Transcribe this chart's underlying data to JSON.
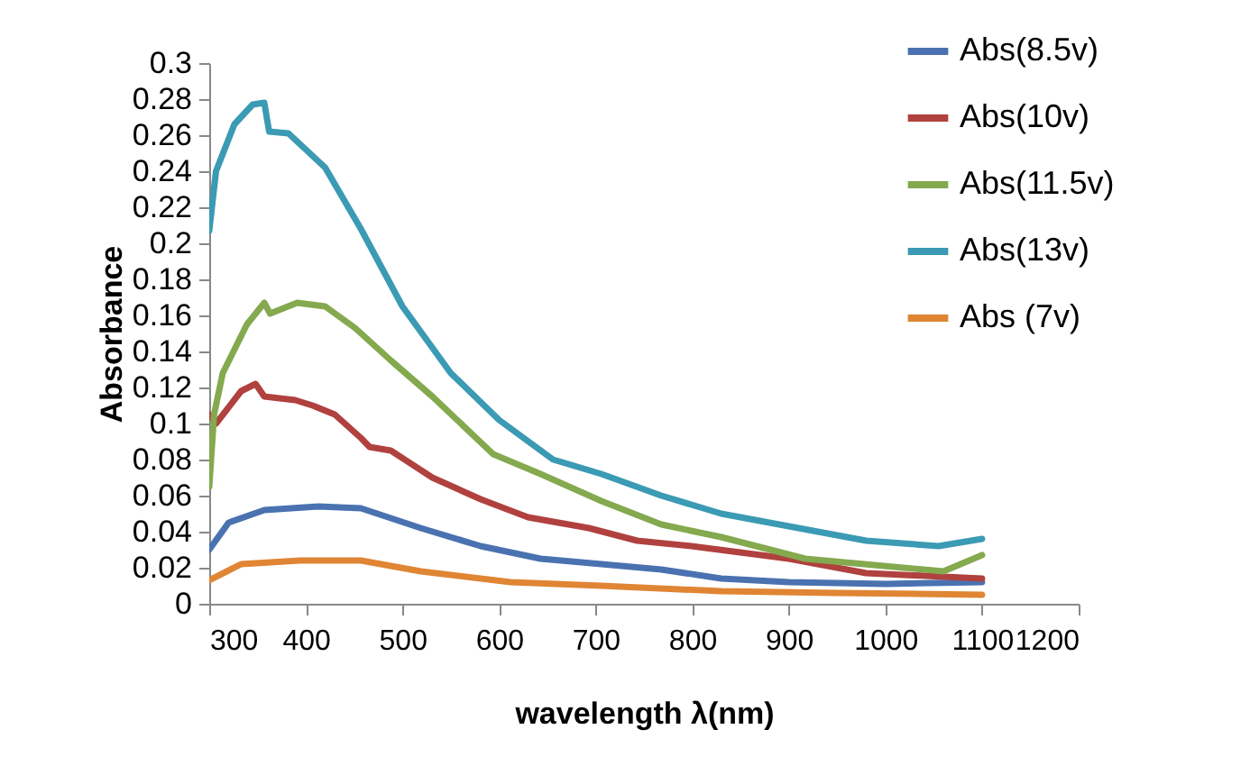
{
  "chart_data": {
    "type": "line",
    "xlabel": "wavelength λ(nm)",
    "ylabel": "Absorbance",
    "xlim": [
      300,
      1200
    ],
    "xticks": [
      300,
      400,
      500,
      600,
      700,
      800,
      900,
      1000,
      1100,
      1200
    ],
    "ylim": [
      0,
      0.3
    ],
    "yticks": [
      0,
      0.02,
      0.04,
      0.06,
      0.08,
      0.1,
      0.12,
      0.14,
      0.16,
      0.18,
      0.2,
      0.22,
      0.24,
      0.26,
      0.28,
      0.3
    ],
    "grid": false,
    "legend": "top right",
    "marker": "none",
    "line_style": "solid",
    "series": [
      {
        "name": "Abs(8.5v)",
        "color": "#4a72b0",
        "x": [
          300,
          320,
          357,
          413,
          457,
          519,
          581,
          643,
          706,
          768,
          830,
          900,
          1000,
          1100
        ],
        "values": [
          0.03,
          0.045,
          0.052,
          0.054,
          0.053,
          0.042,
          0.032,
          0.025,
          0.022,
          0.019,
          0.014,
          0.012,
          0.011,
          0.012
        ]
      },
      {
        "name": "Abs(10v)",
        "color": "#b0413e",
        "x": [
          300,
          307,
          333,
          348,
          357,
          389,
          407,
          430,
          457,
          466,
          488,
          531,
          581,
          630,
          693,
          743,
          799,
          900,
          980,
          1100
        ],
        "values": [
          0.105,
          0.1,
          0.118,
          0.122,
          0.115,
          0.113,
          0.11,
          0.105,
          0.092,
          0.087,
          0.085,
          0.07,
          0.058,
          0.048,
          0.042,
          0.035,
          0.032,
          0.025,
          0.017,
          0.014
        ]
      },
      {
        "name": "Abs(11.5v)",
        "color": "#84a94e",
        "x": [
          300,
          305,
          314,
          339,
          357,
          363,
          391,
          420,
          451,
          488,
          531,
          594,
          643,
          706,
          768,
          830,
          917,
          1060,
          1100
        ],
        "values": [
          0.065,
          0.105,
          0.128,
          0.155,
          0.167,
          0.161,
          0.167,
          0.165,
          0.153,
          0.135,
          0.115,
          0.083,
          0.072,
          0.057,
          0.044,
          0.037,
          0.025,
          0.018,
          0.027
        ]
      },
      {
        "name": "Abs(13v)",
        "color": "#3b9ab4",
        "x": [
          300,
          307,
          326,
          345,
          357,
          362,
          382,
          420,
          457,
          500,
          550,
          600,
          656,
          706,
          768,
          830,
          900,
          980,
          1055,
          1100
        ],
        "values": [
          0.207,
          0.24,
          0.266,
          0.277,
          0.278,
          0.262,
          0.261,
          0.242,
          0.208,
          0.165,
          0.128,
          0.102,
          0.08,
          0.072,
          0.06,
          0.05,
          0.043,
          0.035,
          0.032,
          0.036
        ]
      },
      {
        "name": "Abs (7v)",
        "color": "#e08533",
        "x": [
          300,
          333,
          394,
          457,
          519,
          612,
          706,
          830,
          950,
          1100
        ],
        "values": [
          0.013,
          0.022,
          0.024,
          0.024,
          0.018,
          0.012,
          0.01,
          0.007,
          0.006,
          0.005
        ]
      }
    ]
  }
}
